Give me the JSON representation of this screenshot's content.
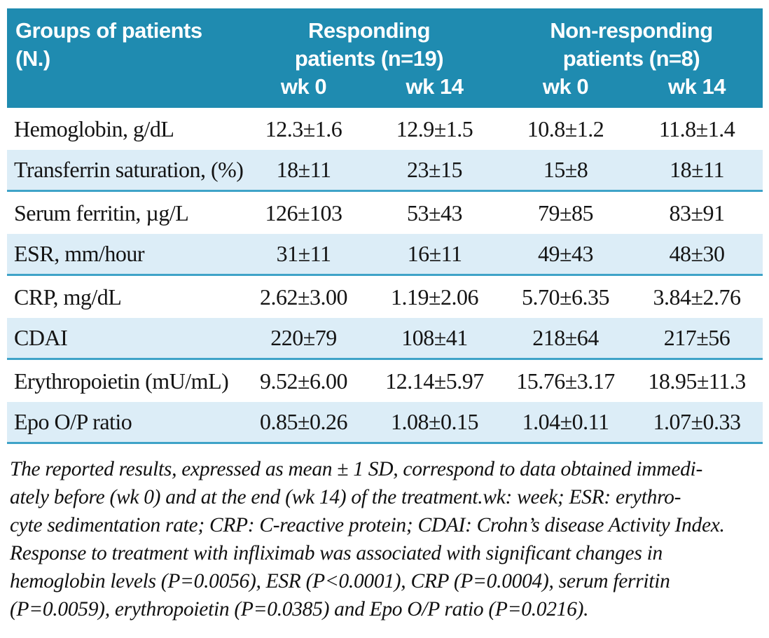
{
  "colors": {
    "header_bg": "#1f8bb0",
    "stripe_bg": "#dcedf7",
    "stripe_border": "#3fa3c8",
    "header_text": "#ffffff",
    "body_text": "#141414"
  },
  "table": {
    "header": {
      "col1_line1": "Groups of patients",
      "col1_line2": "(N.)",
      "group1_line1": "Responding",
      "group1_line2": "patients (n=19)",
      "group2_line1": "Non-responding",
      "group2_line2": "patients (n=8)",
      "subcols": [
        "wk 0",
        "wk 14",
        "wk 0",
        "wk 14"
      ]
    },
    "rows": [
      {
        "label": "Hemoglobin, g/dL",
        "values": [
          "12.3±1.6",
          "12.9±1.5",
          "10.8±1.2",
          "11.8±1.4"
        ]
      },
      {
        "label": "Transferrin saturation, (%)",
        "values": [
          "18±11",
          "23±15",
          "15±8",
          "18±11"
        ]
      },
      {
        "label": "Serum ferritin, µg/L",
        "values": [
          "126±103",
          "53±43",
          "79±85",
          "83±91"
        ]
      },
      {
        "label": "ESR, mm/hour",
        "values": [
          "31±11",
          "16±11",
          "49±43",
          "48±30"
        ]
      },
      {
        "label": "CRP, mg/dL",
        "values": [
          "2.62±3.00",
          "1.19±2.06",
          "5.70±6.35",
          "3.84±2.76"
        ]
      },
      {
        "label": "CDAI",
        "values": [
          "220±79",
          "108±41",
          "218±64",
          "217±56"
        ]
      },
      {
        "label": "Erythropoietin (mU/mL)",
        "values": [
          "9.52±6.00",
          "12.14±5.97",
          "15.76±3.17",
          "18.95±11.3"
        ]
      },
      {
        "label": "Epo O/P ratio",
        "values": [
          "0.85±0.26",
          "1.08±0.15",
          "1.04±0.11",
          "1.07±0.33"
        ]
      }
    ]
  },
  "footnote_lines": [
    "The reported results, expressed as mean ± 1 SD, correspond to data obtained immedi-",
    "ately before (wk 0) and at the end (wk 14) of the treatment.wk: week; ESR: erythro-",
    "cyte sedimentation rate; CRP: C-reactive protein; CDAI: Crohn’s disease Activity Index.",
    "Response to treatment with infliximab was associated with significant changes in",
    "hemoglobin levels (P=0.0056), ESR (P<0.0001), CRP (P=0.0004), serum ferritin",
    "(P=0.0059), erythropoietin (P=0.0385) and Epo O/P ratio (P=0.0216)."
  ]
}
